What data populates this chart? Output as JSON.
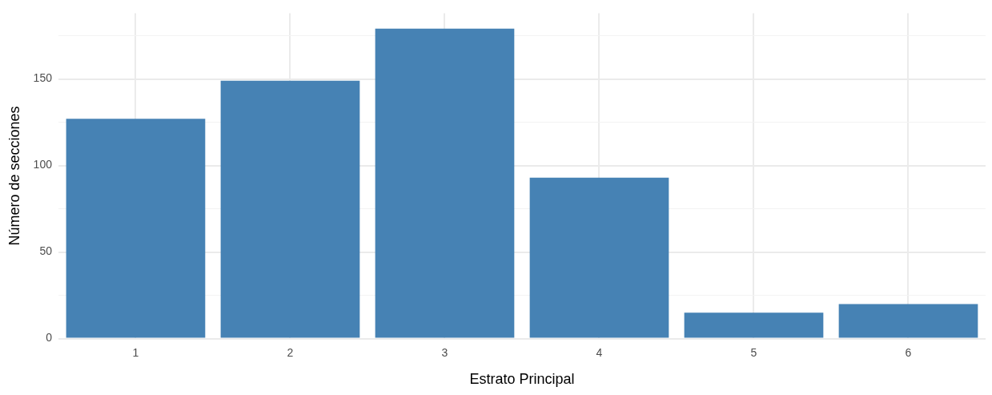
{
  "chart_data": {
    "type": "bar",
    "xlabel": "Estrato Principal",
    "ylabel": "Número de secciones",
    "categories": [
      "1",
      "2",
      "3",
      "4",
      "5",
      "6"
    ],
    "values": [
      127,
      149,
      179,
      93,
      15,
      20
    ],
    "color": "#4682b4",
    "ylim": [
      0,
      188
    ],
    "yticks": [
      0,
      {
        "value": 25,
        "label": null
      },
      50,
      {
        "value": 75,
        "label": null
      },
      100,
      {
        "value": 125,
        "label": null
      },
      150,
      {
        "value": 175,
        "label": null
      }
    ],
    "grid": true
  }
}
